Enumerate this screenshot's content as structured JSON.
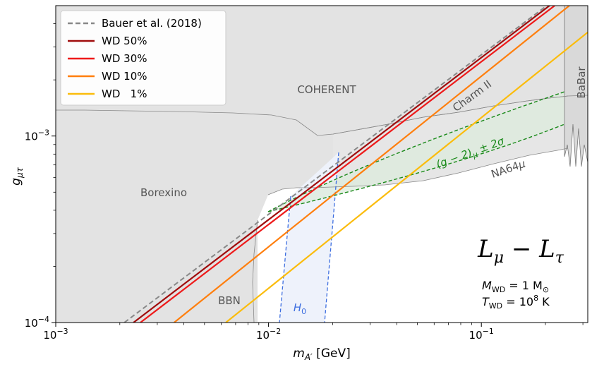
{
  "chart_data": {
    "type": "line",
    "xscale": "log",
    "yscale": "log",
    "xlim": [
      0.001,
      0.3162
    ],
    "ylim": [
      0.0001,
      0.005
    ],
    "xlabel": {
      "base": "m",
      "sub": "A′",
      "unit": " [GeV]"
    },
    "ylabel": {
      "base": "g",
      "sub": "μτ"
    },
    "x_ticks": [
      {
        "value": 0.001,
        "base": "10",
        "exp": "−3"
      },
      {
        "value": 0.01,
        "base": "10",
        "exp": "−2"
      },
      {
        "value": 0.1,
        "base": "10",
        "exp": "−1"
      }
    ],
    "y_ticks": [
      {
        "value": 0.0001,
        "base": "10",
        "exp": "−4"
      },
      {
        "value": 0.001,
        "base": "10",
        "exp": "−3"
      }
    ],
    "series": [
      {
        "name": "Bauer et al. (2018)",
        "color": "#888888",
        "dash": true,
        "x": [
          0.0021,
          0.203
        ],
        "y": [
          0.0001,
          0.005
        ]
      },
      {
        "name": "WD 50%",
        "color": "#a00d0d",
        "dash": false,
        "x": [
          0.00232,
          0.209
        ],
        "y": [
          0.0001,
          0.005
        ]
      },
      {
        "name": "WD 30%",
        "color": "#ee1a1a",
        "dash": false,
        "x": [
          0.0025,
          0.221
        ],
        "y": [
          0.0001,
          0.005
        ]
      },
      {
        "name": "WD 10%",
        "color": "#ff7f0e",
        "dash": false,
        "x": [
          0.0036,
          0.259
        ],
        "y": [
          0.0001,
          0.005
        ]
      },
      {
        "name": "WD   1%",
        "color": "#fbbc0c",
        "dash": false,
        "x": [
          0.0063,
          0.3162
        ],
        "y": [
          0.0001,
          0.0036
        ]
      }
    ],
    "region_labels": {
      "coherent": "COHERENT",
      "borexino": "Borexino",
      "charm": "Charm II",
      "babar": "BaBar",
      "bbn": "BBN",
      "na64": "NA64",
      "na64_sub": "μ",
      "h0": "H",
      "h0_sub": "0",
      "gm2_a": "(g − 2)",
      "gm2_sub": "μ",
      "gm2_b": " ± 2σ"
    },
    "annotation_title": {
      "a": "L",
      "sub_a": "μ",
      "mid": " − L",
      "sub_b": "τ"
    },
    "annotation_mass": {
      "a": "M",
      "sub": "WD",
      "b": " = 1 M",
      "sun": "⊙"
    },
    "annotation_temp": {
      "a": "T",
      "sub": "WD",
      "b": " = 10",
      "exp": "8",
      "c": " K"
    }
  }
}
